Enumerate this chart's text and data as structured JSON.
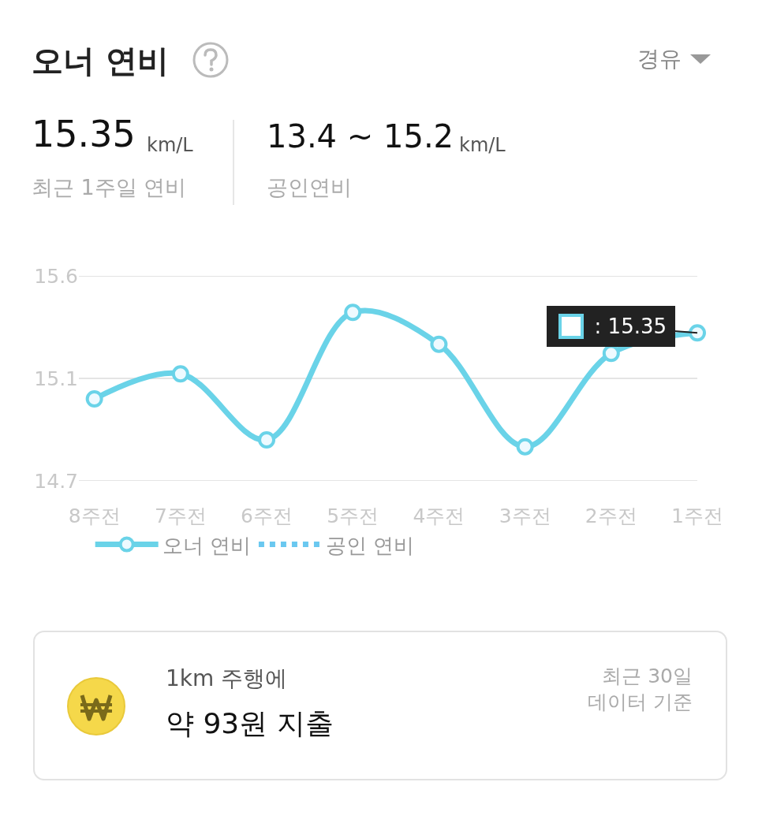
{
  "chart_data": {
    "type": "line",
    "title": "오너 연비",
    "annotations": [
      "경유",
      "15.35",
      "km/L",
      "최근 1주일 연비",
      "13.4 ~ 15.2",
      "km/L",
      "공인연비",
      "1km 주행에",
      "약 93원 지출",
      "최근 30일\n데이터 기준",
      {
        "text": ": 15.35",
        "x": "1주전",
        "y": 15.35
      }
    ],
    "categories": [
      "8주전",
      "7주전",
      "6주전",
      "5주전",
      "4주전",
      "3주전",
      "2주전",
      "1주전"
    ],
    "series": [
      {
        "name": "오너 연비",
        "color": "#6ad3e8",
        "values": [
          15.06,
          15.17,
          14.88,
          15.44,
          15.3,
          14.85,
          15.26,
          15.35
        ],
        "marker": "circle",
        "line_style": "solid"
      },
      {
        "name": "공인 연비",
        "color": "#6ac8f0",
        "values": [
          null,
          null,
          null,
          null,
          null,
          null,
          null,
          null
        ],
        "marker": "none",
        "line_style": "dotted"
      }
    ],
    "ylim": [
      14.7,
      15.6
    ],
    "yticks": [
      14.7,
      {
        "value": 15.15,
        "label": "15.1"
      },
      15.6
    ],
    "grid": "y",
    "legend": "bottom left"
  }
}
